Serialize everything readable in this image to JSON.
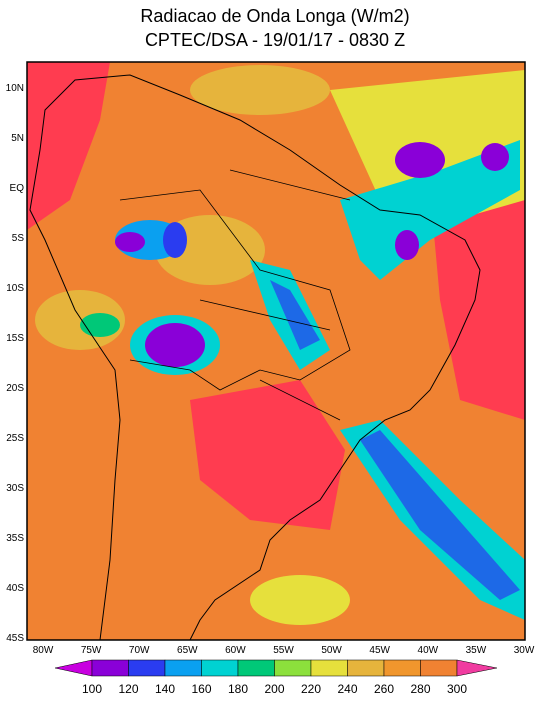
{
  "header": {
    "title": "Radiacao de Onda Longa (W/m2)",
    "subtitle": "CPTEC/DSA - 19/01/17 - 0830 Z"
  },
  "map": {
    "lat_labels": [
      "10N",
      "5N",
      "EQ",
      "5S",
      "10S",
      "15S",
      "20S",
      "25S",
      "30S",
      "35S",
      "40S",
      "45S"
    ],
    "lon_labels": [
      "80W",
      "75W",
      "70W",
      "65W",
      "60W",
      "55W",
      "50W",
      "45W",
      "40W",
      "35W",
      "30W"
    ]
  },
  "colorbar": {
    "ticks": [
      100,
      120,
      140,
      160,
      180,
      200,
      220,
      240,
      260,
      280,
      300
    ],
    "colors": [
      "#c800e0",
      "#8a00d8",
      "#2a3cf0",
      "#0aa0f0",
      "#00d2d2",
      "#00c878",
      "#8ce03c",
      "#e6e03c",
      "#e6b43c",
      "#f0962d",
      "#f08232",
      "#ff3c50",
      "#f03ca0"
    ]
  }
}
